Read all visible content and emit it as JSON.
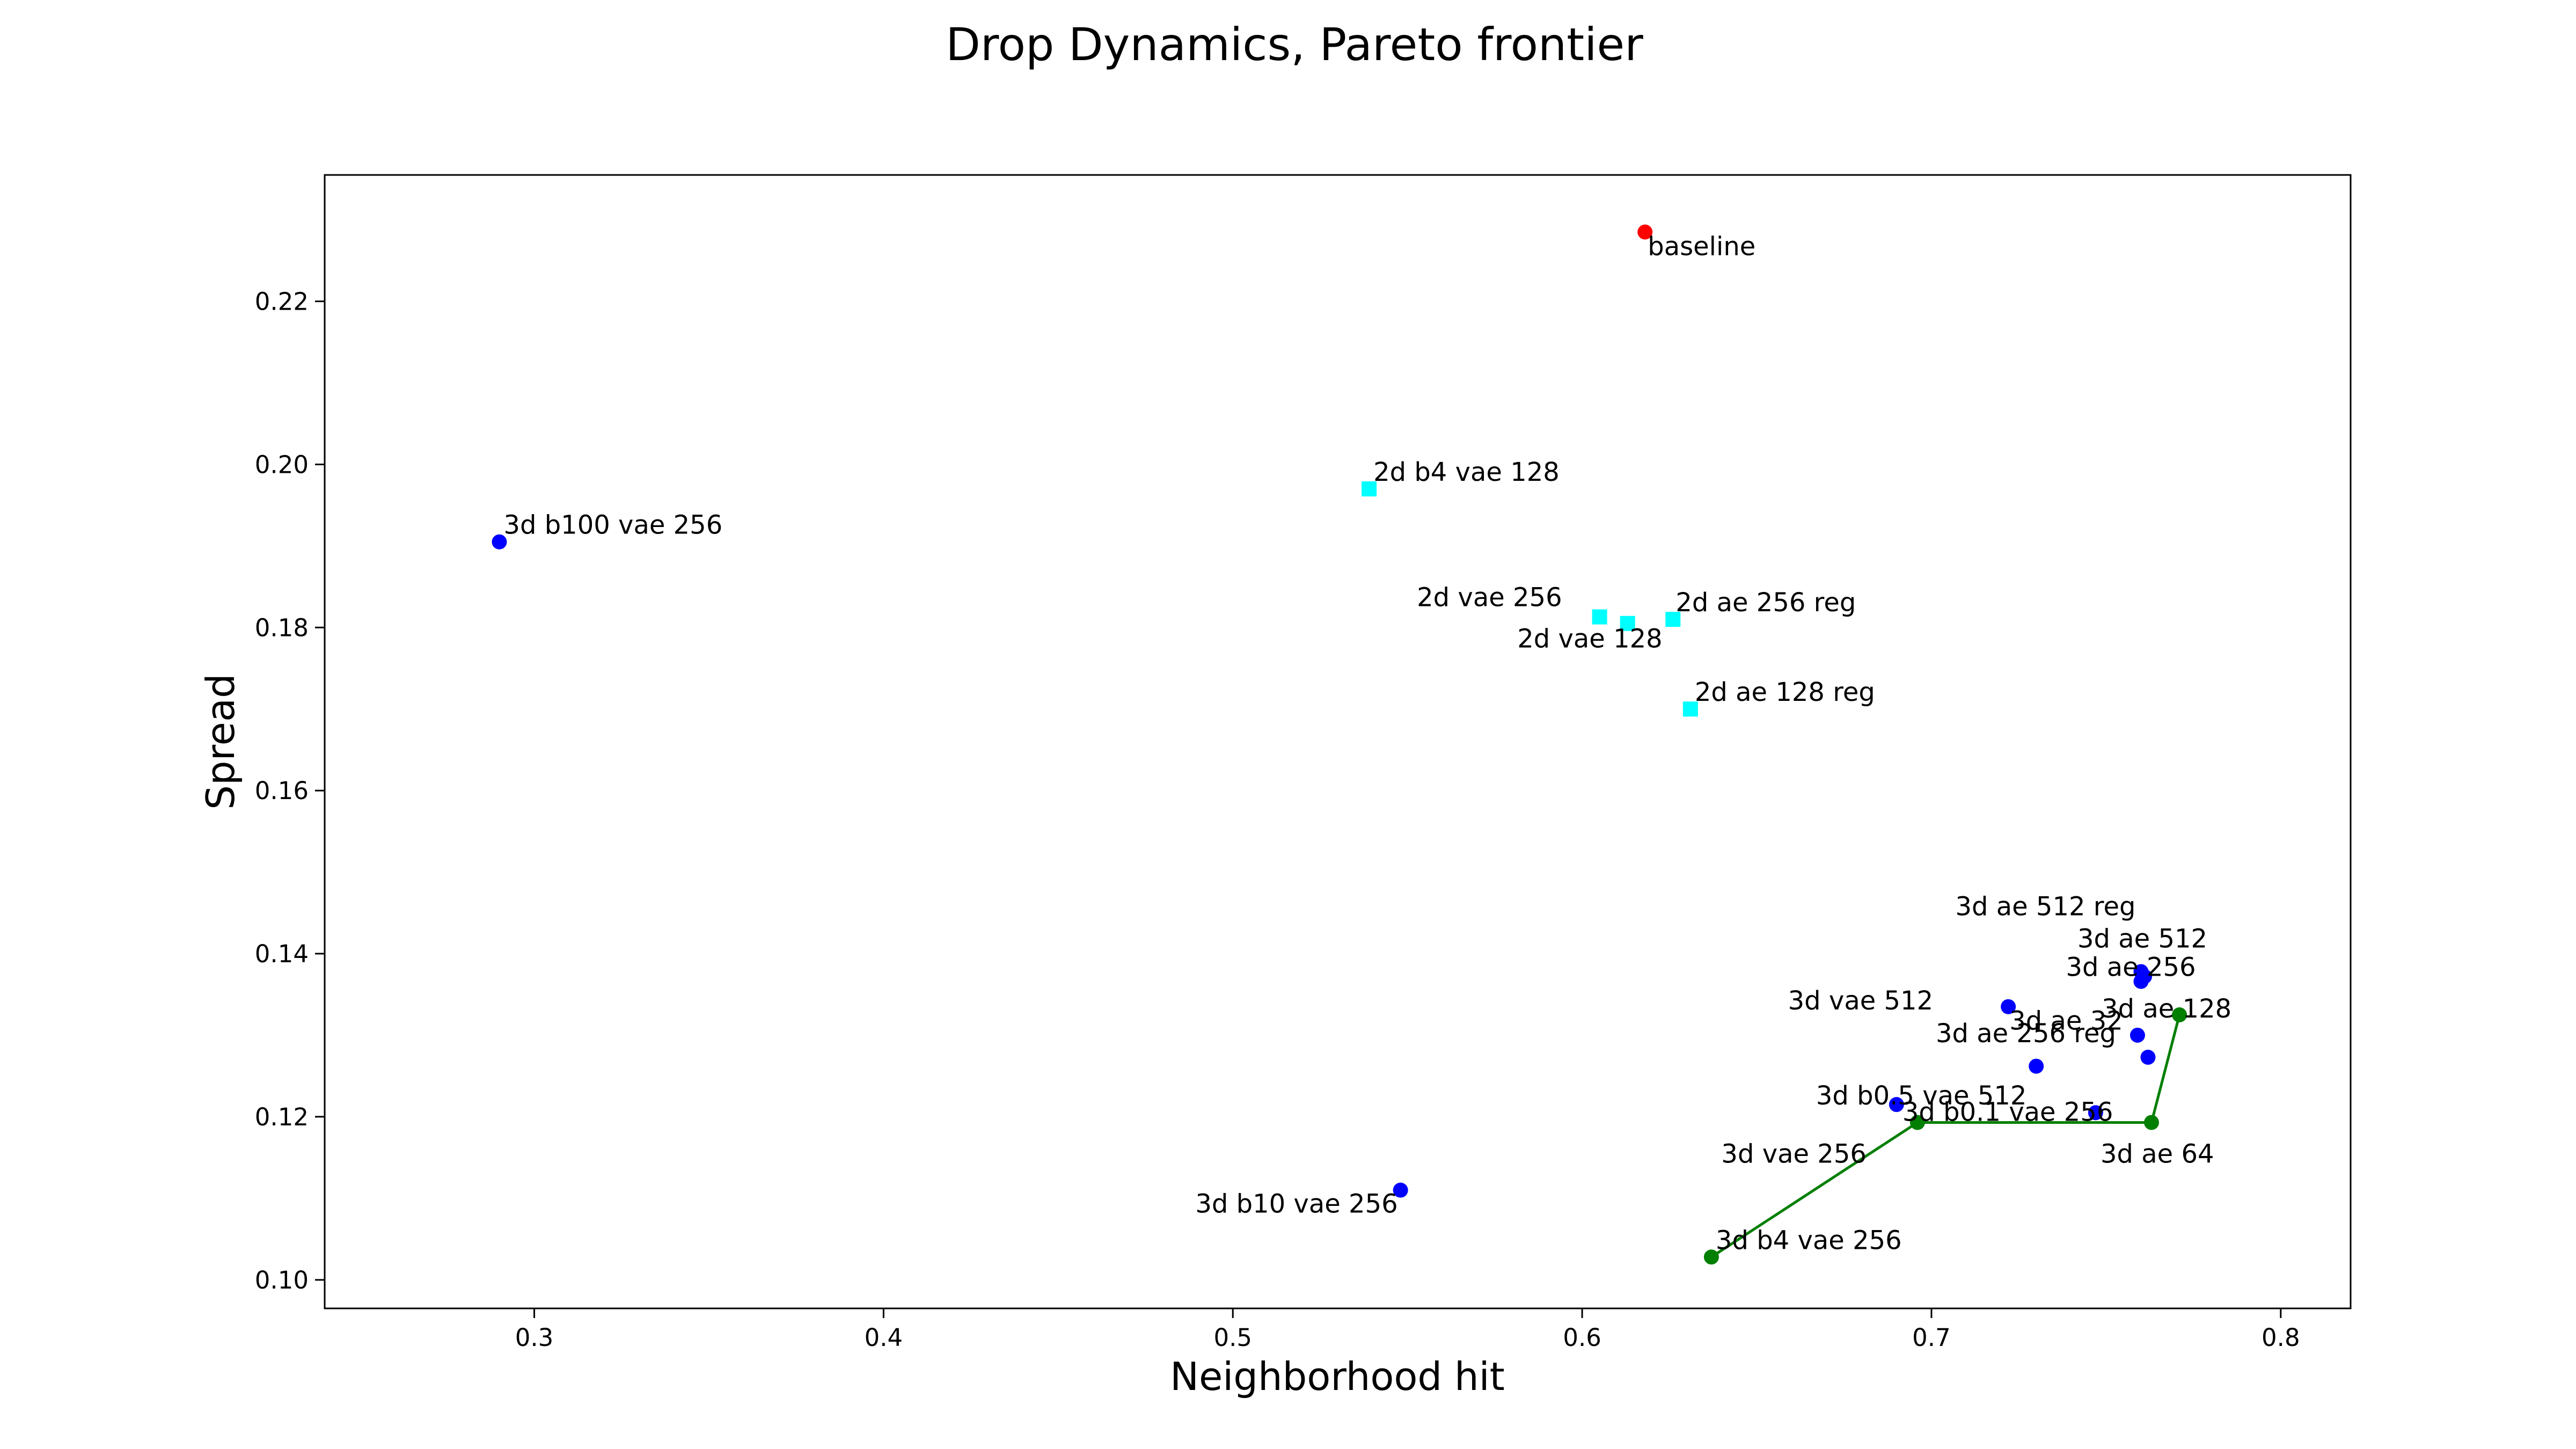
{
  "chart_data": {
    "type": "scatter",
    "title": "Drop Dynamics, Pareto frontier",
    "xlabel": "Neighborhood hit",
    "ylabel": "Spread",
    "xlim": [
      0.24,
      0.82
    ],
    "ylim": [
      0.0965,
      0.2355
    ],
    "xticks": [
      0.3,
      0.4,
      0.5,
      0.6,
      0.7,
      0.8
    ],
    "xtick_labels": [
      "0.3",
      "0.4",
      "0.5",
      "0.6",
      "0.7",
      "0.8"
    ],
    "yticks": [
      0.1,
      0.12,
      0.14,
      0.16,
      0.18,
      0.2,
      0.22
    ],
    "ytick_labels": [
      "0.10",
      "0.12",
      "0.14",
      "0.16",
      "0.18",
      "0.20",
      "0.22"
    ],
    "grid": false,
    "colors": {
      "3d": "#0000ff",
      "2d": "#00ffff",
      "baseline": "#ff0000",
      "frontier": "#007f00"
    },
    "series": [
      {
        "group": "baseline",
        "marker": "circle",
        "color": "#ff0000",
        "points": [
          {
            "label": "baseline",
            "x": 0.618,
            "y": 0.2285
          }
        ]
      },
      {
        "group": "2d",
        "marker": "square",
        "color": "#00ffff",
        "points": [
          {
            "label": "2d b4 vae 128",
            "x": 0.539,
            "y": 0.197
          },
          {
            "label": "2d vae 256",
            "x": 0.605,
            "y": 0.1813
          },
          {
            "label": "2d vae 128",
            "x": 0.613,
            "y": 0.1805
          },
          {
            "label": "2d ae 256 reg",
            "x": 0.626,
            "y": 0.181
          },
          {
            "label": "2d ae 128 reg",
            "x": 0.631,
            "y": 0.17
          }
        ]
      },
      {
        "group": "3d",
        "marker": "circle",
        "color": "#0000ff",
        "points": [
          {
            "label": "3d b100 vae 256",
            "x": 0.29,
            "y": 0.1905
          },
          {
            "label": "3d b10 vae 256",
            "x": 0.548,
            "y": 0.111
          },
          {
            "label": "3d b0.5 vae 512",
            "x": 0.69,
            "y": 0.1215
          },
          {
            "label": "3d vae 512",
            "x": 0.722,
            "y": 0.1335
          },
          {
            "label": "3d ae 32",
            "x": 0.73,
            "y": 0.1262
          },
          {
            "label": "3d b0.1 vae 256",
            "x": 0.747,
            "y": 0.1205
          },
          {
            "label": "3d ae 256 reg",
            "x": 0.759,
            "y": 0.13
          },
          {
            "label": "3d ae 512 reg",
            "x": 0.76,
            "y": 0.1378
          },
          {
            "label": "3d ae 512",
            "x": 0.761,
            "y": 0.1372
          },
          {
            "label": "3d ae 256",
            "x": 0.76,
            "y": 0.1366
          },
          {
            "label": "",
            "x": 0.762,
            "y": 0.1273
          }
        ]
      },
      {
        "group": "frontier",
        "marker": "circle",
        "color": "#007f00",
        "line": true,
        "points": [
          {
            "label": "3d b4 vae 256",
            "x": 0.637,
            "y": 0.1028
          },
          {
            "label": "3d vae 256",
            "x": 0.696,
            "y": 0.1193
          },
          {
            "label": "3d ae 64",
            "x": 0.763,
            "y": 0.1193
          },
          {
            "label": "3d ae 128",
            "x": 0.771,
            "y": 0.1325
          }
        ]
      }
    ]
  }
}
